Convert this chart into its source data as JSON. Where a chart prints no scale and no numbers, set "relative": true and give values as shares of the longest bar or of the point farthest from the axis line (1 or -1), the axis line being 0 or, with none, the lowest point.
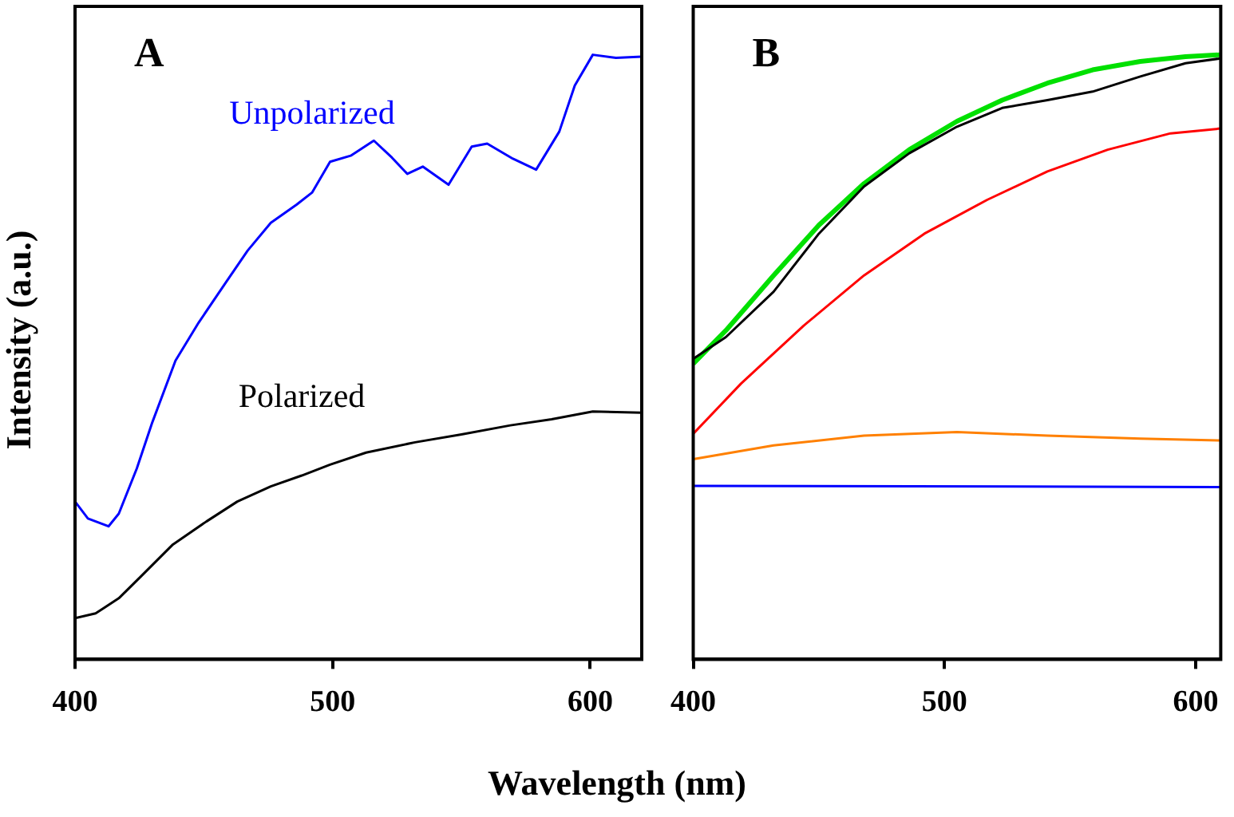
{
  "chart_data": [
    {
      "type": "line",
      "title": "A",
      "xlabel": "Wavelength (nm)",
      "ylabel": "Intensity (a.u.)",
      "relative": true,
      "xlim": [
        400,
        620
      ],
      "xticks": [
        400,
        500,
        600
      ],
      "x": [
        400,
        405,
        413,
        417,
        424,
        430,
        439,
        448,
        458,
        467,
        476,
        486,
        492,
        499,
        507,
        516,
        523,
        529,
        535,
        545,
        554,
        560,
        570,
        579,
        588,
        594,
        601,
        610,
        620
      ],
      "series": [
        {
          "name": "Unpolarized",
          "color": "#0000ff",
          "values": [
            0.261,
            0.233,
            0.22,
            0.241,
            0.316,
            0.392,
            0.494,
            0.557,
            0.62,
            0.676,
            0.722,
            0.752,
            0.772,
            0.823,
            0.833,
            0.858,
            0.83,
            0.803,
            0.815,
            0.785,
            0.848,
            0.853,
            0.828,
            0.81,
            0.873,
            0.949,
            1,
            0.995,
            0.997
          ]
        },
        {
          "name": "Polarized",
          "color": "#000000",
          "x": [
            400,
            408,
            417,
            426,
            438,
            451,
            463,
            476,
            488,
            499,
            513,
            532,
            550,
            569,
            585,
            601,
            620
          ],
          "values": [
            0.068,
            0.076,
            0.101,
            0.139,
            0.19,
            0.228,
            0.261,
            0.286,
            0.304,
            0.322,
            0.342,
            0.359,
            0.372,
            0.387,
            0.397,
            0.41,
            0.408
          ]
        }
      ]
    },
    {
      "type": "line",
      "title": "B",
      "relative": true,
      "xlim": [
        400,
        610
      ],
      "xticks": [
        400,
        500,
        600
      ],
      "x": [
        400,
        413,
        432,
        450,
        468,
        486,
        505,
        523,
        541,
        559,
        578,
        596,
        610
      ],
      "series": [
        {
          "color": "#000000",
          "values": [
            0.497,
            0.533,
            0.608,
            0.704,
            0.782,
            0.837,
            0.881,
            0.912,
            0.925,
            0.939,
            0.964,
            0.986,
            0.994
          ]
        },
        {
          "color": "#00e000",
          "values": [
            0.489,
            0.544,
            0.635,
            0.718,
            0.787,
            0.843,
            0.89,
            0.925,
            0.953,
            0.975,
            0.989,
            0.997,
            1
          ]
        },
        {
          "color": "#ff0000",
          "x": [
            400,
            419,
            444,
            468,
            492,
            517,
            541,
            565,
            590,
            610
          ],
          "values": [
            0.373,
            0.456,
            0.552,
            0.635,
            0.704,
            0.76,
            0.807,
            0.843,
            0.87,
            0.878
          ]
        },
        {
          "color": "#ff8000",
          "x": [
            400,
            432,
            468,
            505,
            541,
            578,
            610
          ],
          "values": [
            0.331,
            0.354,
            0.37,
            0.376,
            0.37,
            0.365,
            0.362
          ]
        },
        {
          "color": "#0000ff",
          "x": [
            400,
            610
          ],
          "values": [
            0.287,
            0.285
          ]
        }
      ]
    }
  ]
}
